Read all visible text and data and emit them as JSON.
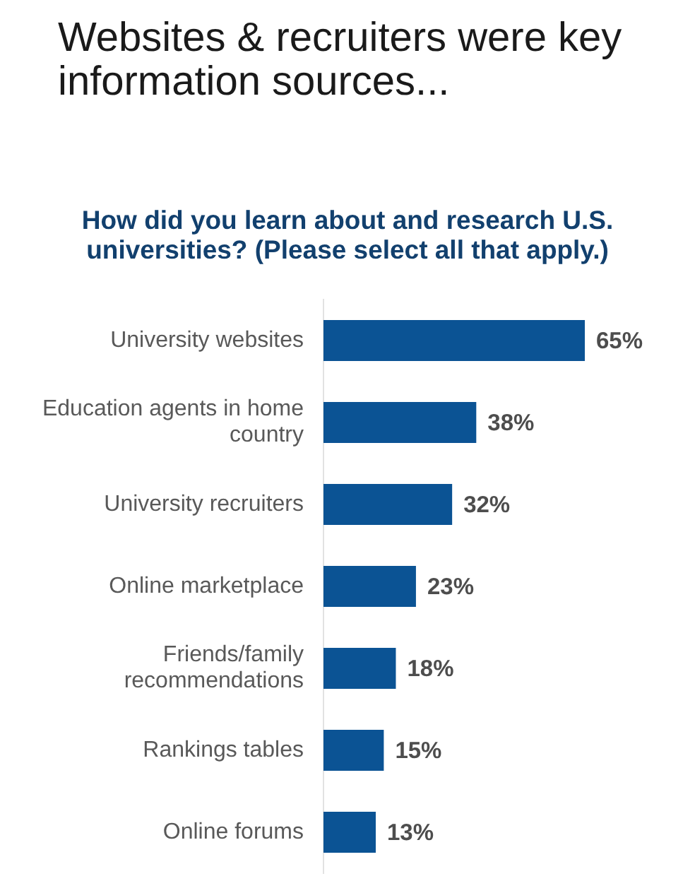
{
  "chart_data": {
    "type": "bar",
    "title": "Websites & recruiters were key information sources...",
    "subtitle": "How did you learn about and research U.S. universities? (Please select all that apply.)",
    "orientation": "horizontal",
    "categories": [
      "University websites",
      "Education agents in home country",
      "University recruiters",
      "Online marketplace",
      "Friends/family recommendations",
      "Rankings tables",
      "Online forums"
    ],
    "values": [
      65,
      38,
      32,
      23,
      18,
      15,
      13
    ],
    "value_labels": [
      "65%",
      "38%",
      "32%",
      "23%",
      "18%",
      "15%",
      "13%"
    ],
    "color": "#0b5394",
    "tick_labels": "y"
  }
}
